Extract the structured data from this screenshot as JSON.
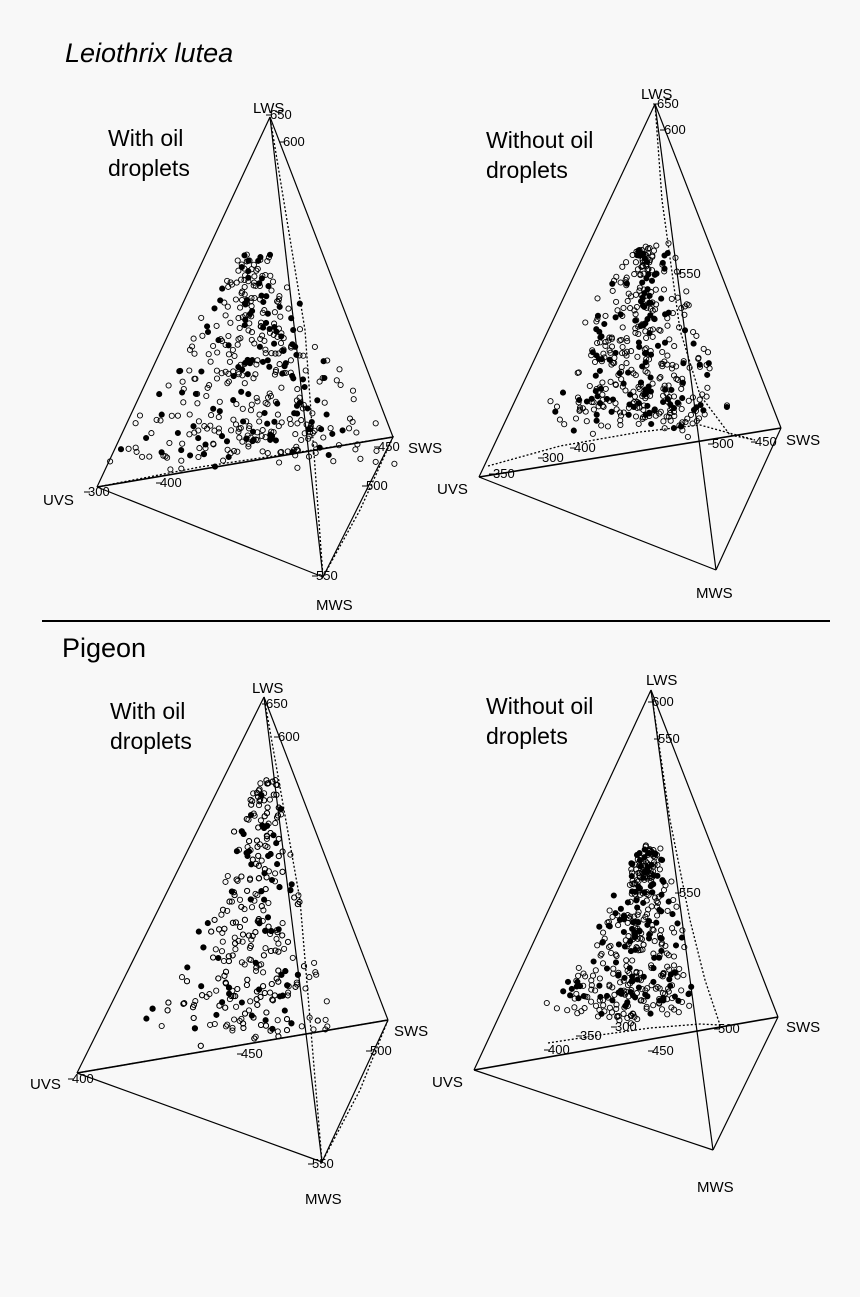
{
  "sections": [
    {
      "title": "Leiothrix lutea",
      "panels": [
        {
          "subtitle_line1": "With oil",
          "subtitle_line2": "droplets",
          "vertices": {
            "lws": "LWS",
            "uvs": "UVS",
            "sws": "SWS",
            "mws": "MWS"
          },
          "wavelength_labels": [
            "650",
            "600",
            "300",
            "400",
            "450",
            "500",
            "550"
          ]
        },
        {
          "subtitle_line1": "Without oil",
          "subtitle_line2": "droplets",
          "vertices": {
            "lws": "LWS",
            "uvs": "UVS",
            "sws": "SWS",
            "mws": "MWS"
          },
          "wavelength_labels": [
            "650",
            "600",
            "550",
            "350",
            "300",
            "400",
            "500",
            "450"
          ]
        }
      ]
    },
    {
      "title": "Pigeon",
      "panels": [
        {
          "subtitle_line1": "With oil",
          "subtitle_line2": "droplets",
          "vertices": {
            "lws": "LWS",
            "uvs": "UVS",
            "sws": "SWS",
            "mws": "MWS"
          },
          "wavelength_labels": [
            "650",
            "600",
            "400",
            "450",
            "500",
            "550"
          ]
        },
        {
          "subtitle_line1": "Without oil",
          "subtitle_line2": "droplets",
          "vertices": {
            "lws": "LWS",
            "uvs": "UVS",
            "sws": "SWS",
            "mws": "MWS"
          },
          "wavelength_labels": [
            "600",
            "550",
            "550",
            "350",
            "300",
            "400",
            "450",
            "500"
          ]
        }
      ]
    }
  ]
}
